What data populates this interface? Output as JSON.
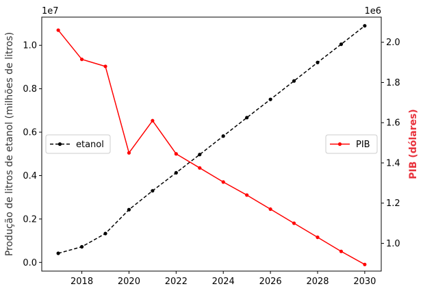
{
  "chart_data": {
    "type": "line",
    "x": [
      2017,
      2018,
      2019,
      2020,
      2021,
      2022,
      2023,
      2024,
      2025,
      2026,
      2027,
      2028,
      2029,
      2030
    ],
    "xlim": [
      2016.3,
      2030.7
    ],
    "xticks": [
      2018,
      2020,
      2022,
      2024,
      2026,
      2028,
      2030
    ],
    "ylabel_left": "Produção de litros de etanol (milhões de litros)",
    "ylabel_right": "PIB (dólares)",
    "left_axis": {
      "ylim": [
        -0.04,
        1.13
      ],
      "ticks": [
        0.0,
        0.2,
        0.4,
        0.6,
        0.8,
        1.0
      ],
      "tick_labels": [
        "0.0",
        "0.2",
        "0.4",
        "0.6",
        "0.8",
        "1.0"
      ],
      "offset_label": "1e7"
    },
    "right_axis": {
      "ylim": [
        0.862,
        2.125
      ],
      "ticks": [
        1.0,
        1.2,
        1.4,
        1.6,
        1.8,
        2.0
      ],
      "tick_labels": [
        "1.0",
        "1.2",
        "1.4",
        "1.6",
        "1.8",
        "2.0"
      ],
      "offset_label": "1e6",
      "label_color": "#e8323c"
    },
    "series": [
      {
        "name": "etanol",
        "axis": "left",
        "color": "#000000",
        "linestyle": "dashed",
        "marker": "circle",
        "values": [
          0.042,
          0.072,
          0.133,
          0.243,
          0.33,
          0.413,
          0.497,
          0.582,
          0.667,
          0.751,
          0.836,
          0.921,
          1.005,
          1.09
        ]
      },
      {
        "name": "PIB",
        "axis": "right",
        "color": "#ff0000",
        "linestyle": "solid",
        "marker": "circle",
        "values": [
          2.06,
          1.915,
          1.88,
          1.45,
          1.61,
          1.445,
          1.375,
          1.305,
          1.24,
          1.17,
          1.1,
          1.03,
          0.96,
          0.895
        ]
      }
    ],
    "legends": [
      {
        "series": "etanol",
        "placement": "center-left"
      },
      {
        "series": "PIB",
        "placement": "center-right"
      }
    ]
  }
}
